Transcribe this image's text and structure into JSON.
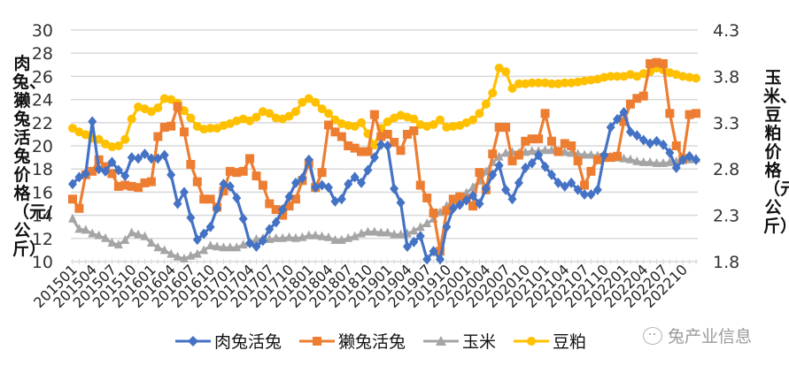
{
  "chart_data": {
    "type": "line",
    "title": "",
    "xlabel": "",
    "ylabel": "肉兔、獭兔活兔价格（元/公斤）",
    "y2label": "玉米、豆粕价格（元/公斤）",
    "ylim": [
      10,
      30
    ],
    "y2lim": [
      1.8,
      4.3
    ],
    "yticks": [
      10,
      12,
      14,
      16,
      18,
      20,
      22,
      24,
      26,
      28,
      30
    ],
    "y2ticks": [
      1.8,
      2.3,
      2.8,
      3.3,
      3.8,
      4.3
    ],
    "grid": true,
    "legend_position": "bottom",
    "x_tick_labels": [
      "201501",
      "201504",
      "201507",
      "201510",
      "201601",
      "201604",
      "201607",
      "201610",
      "201701",
      "201704",
      "201707",
      "201710",
      "201801",
      "201804",
      "201807",
      "201810",
      "201901",
      "201904",
      "201907",
      "201910",
      "202001",
      "202004",
      "202007",
      "202010",
      "202101",
      "202104",
      "202107",
      "202110",
      "202201",
      "202204",
      "202207",
      "202210"
    ],
    "x_start": "2015-01",
    "x_count": 96,
    "x_frequency": "monthly",
    "series": [
      {
        "name": "肉兔活兔",
        "axis": "left",
        "color": "#4472C4",
        "marker": "diamond",
        "values": [
          16.7,
          17.3,
          17.6,
          22.1,
          18.0,
          17.8,
          18.6,
          17.9,
          17.4,
          19.0,
          18.9,
          19.3,
          18.9,
          18.9,
          19.2,
          17.5,
          15.0,
          16.0,
          13.8,
          11.9,
          12.4,
          13.0,
          14.6,
          16.7,
          16.5,
          15.5,
          13.7,
          11.6,
          11.3,
          11.8,
          12.8,
          13.4,
          14.5,
          15.6,
          16.8,
          17.2,
          18.8,
          16.4,
          16.6,
          16.4,
          15.2,
          15.4,
          16.7,
          17.3,
          16.8,
          17.9,
          19.0,
          20.1,
          20.0,
          16.3,
          15.1,
          11.3,
          11.7,
          12.2,
          10.2,
          10.9,
          10.2,
          13.0,
          14.6,
          14.9,
          15.3,
          15.7,
          15.0,
          16.3,
          17.5,
          18.3,
          16.2,
          15.4,
          16.8,
          18.1,
          18.5,
          19.2,
          18.2,
          17.5,
          16.8,
          16.5,
          16.8,
          16.2,
          15.8,
          15.8,
          16.2,
          19.2,
          21.6,
          22.3,
          22.9,
          21.2,
          20.9,
          20.5,
          20.2,
          20.4,
          20.1,
          19.4,
          18.1,
          18.8,
          19.1,
          18.8
        ]
      },
      {
        "name": "獭兔活兔",
        "axis": "left",
        "color": "#ED7D31",
        "marker": "square",
        "values": [
          15.4,
          14.6,
          17.5,
          17.8,
          18.8,
          18.2,
          17.6,
          16.5,
          16.6,
          16.5,
          16.4,
          16.8,
          16.9,
          20.8,
          21.6,
          21.7,
          23.4,
          21.2,
          18.4,
          16.9,
          15.4,
          15.4,
          14.7,
          16.1,
          17.8,
          17.7,
          17.8,
          18.9,
          17.4,
          16.6,
          15.0,
          14.5,
          14.0,
          14.8,
          15.4,
          17.0,
          18.5,
          16.4,
          17.7,
          21.8,
          21.2,
          20.8,
          20.0,
          19.8,
          19.5,
          19.5,
          22.7,
          20.8,
          21.0,
          20.3,
          19.6,
          21.0,
          21.3,
          16.6,
          15.5,
          14.2,
          10.9,
          14.4,
          15.4,
          15.6,
          15.4,
          14.8,
          17.7,
          16.2,
          19.3,
          21.6,
          21.6,
          18.7,
          19.2,
          20.4,
          20.6,
          20.6,
          22.8,
          20.4,
          19.5,
          20.2,
          20.0,
          18.7,
          16.6,
          17.8,
          18.8,
          19.0,
          19.0,
          19.1,
          22.1,
          23.6,
          24.1,
          24.3,
          27.1,
          27.2,
          27.1,
          22.8,
          20.0,
          18.9,
          22.7,
          22.8
        ]
      },
      {
        "name": "玉米",
        "axis": "right",
        "color": "#A5A5A5",
        "marker": "triangle",
        "values": [
          2.26,
          2.15,
          2.14,
          2.1,
          2.08,
          2.05,
          2.0,
          1.98,
          2.03,
          2.11,
          2.09,
          2.07,
          2.0,
          1.95,
          1.92,
          1.88,
          1.85,
          1.83,
          1.86,
          1.88,
          1.92,
          1.97,
          1.96,
          1.95,
          1.95,
          1.95,
          1.98,
          2.0,
          2.04,
          2.05,
          2.04,
          2.05,
          2.05,
          2.06,
          2.05,
          2.06,
          2.08,
          2.08,
          2.07,
          2.06,
          2.03,
          2.03,
          2.05,
          2.07,
          2.1,
          2.12,
          2.12,
          2.11,
          2.11,
          2.09,
          2.09,
          2.1,
          2.13,
          2.17,
          2.21,
          2.26,
          2.33,
          2.4,
          2.45,
          2.5,
          2.54,
          2.6,
          2.67,
          2.77,
          2.87,
          2.93,
          2.97,
          2.98,
          2.97,
          2.98,
          2.99,
          2.99,
          3.0,
          3.0,
          2.99,
          2.98,
          2.97,
          2.96,
          2.95,
          2.95,
          2.94,
          2.94,
          2.93,
          2.92,
          2.91,
          2.9,
          2.88,
          2.87,
          2.87,
          2.86,
          2.86,
          2.87,
          2.88,
          2.89,
          2.9,
          2.91
        ]
      },
      {
        "name": "豆粕",
        "axis": "right",
        "color": "#FFC000",
        "marker": "circle",
        "values": [
          3.24,
          3.2,
          3.17,
          3.13,
          3.12,
          3.07,
          3.04,
          3.05,
          3.12,
          3.34,
          3.47,
          3.45,
          3.42,
          3.46,
          3.56,
          3.55,
          3.51,
          3.43,
          3.35,
          3.26,
          3.23,
          3.24,
          3.24,
          3.27,
          3.29,
          3.32,
          3.34,
          3.32,
          3.36,
          3.42,
          3.4,
          3.35,
          3.34,
          3.37,
          3.42,
          3.52,
          3.56,
          3.52,
          3.45,
          3.4,
          3.33,
          3.29,
          3.27,
          3.26,
          3.3,
          3.18,
          3.06,
          3.24,
          3.31,
          3.35,
          3.38,
          3.36,
          3.34,
          3.28,
          3.26,
          3.28,
          3.33,
          3.25,
          3.26,
          3.27,
          3.3,
          3.33,
          3.4,
          3.5,
          3.62,
          3.89,
          3.85,
          3.67,
          3.72,
          3.72,
          3.73,
          3.73,
          3.73,
          3.72,
          3.72,
          3.73,
          3.73,
          3.74,
          3.75,
          3.76,
          3.77,
          3.79,
          3.8,
          3.8,
          3.8,
          3.82,
          3.8,
          3.83,
          3.85,
          3.89,
          3.87,
          3.84,
          3.82,
          3.8,
          3.79,
          3.78
        ]
      }
    ]
  },
  "legend": {
    "items": [
      {
        "label": "肉兔活兔"
      },
      {
        "label": "獭兔活兔"
      },
      {
        "label": "玉米"
      },
      {
        "label": "豆粕"
      }
    ]
  },
  "axis_titles": {
    "left": "肉兔、獭兔活兔价格（元/公斤）",
    "right": "玉米、豆粕价格（元/公斤）"
  },
  "watermark": {
    "text": "兔产业信息"
  }
}
